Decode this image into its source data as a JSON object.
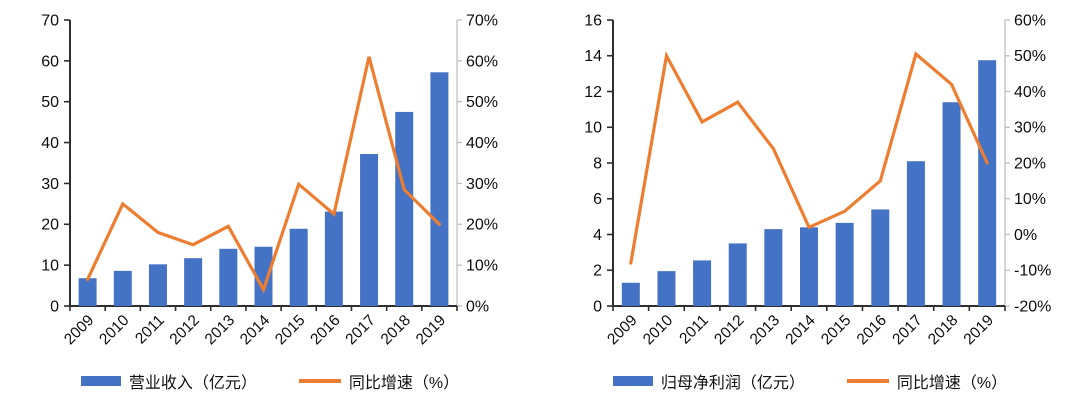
{
  "colors": {
    "bar": "#4472C4",
    "line": "#ED7D31",
    "axis_dark": "#2e2e2e",
    "axis_light": "#BFBFBF",
    "text": "#0d0d0d",
    "background": "#ffffff"
  },
  "chart_data": [
    {
      "type": "bar",
      "subtype": "bar-line-combo",
      "title": "",
      "categories": [
        "2009",
        "2010",
        "2011",
        "2012",
        "2013",
        "2014",
        "2015",
        "2016",
        "2017",
        "2018",
        "2019"
      ],
      "series": [
        {
          "name": "营业收入（亿元）",
          "type": "bar",
          "axis": "left",
          "values": [
            6.8,
            8.6,
            10.2,
            11.7,
            14.0,
            14.5,
            18.9,
            23.1,
            37.2,
            47.5,
            57.2
          ]
        },
        {
          "name": "同比增速（%）",
          "type": "line",
          "axis": "right",
          "values": [
            6.5,
            25,
            18,
            15,
            19.5,
            4,
            29.8,
            22.5,
            61,
            28.5,
            20
          ]
        }
      ],
      "left_axis": {
        "min": 0,
        "max": 70,
        "step": 10,
        "tick_labels": [
          "0",
          "10",
          "20",
          "30",
          "40",
          "50",
          "60",
          "70"
        ]
      },
      "right_axis": {
        "min": 0,
        "max": 70,
        "step": 10,
        "tick_labels": [
          "0%",
          "10%",
          "20%",
          "30%",
          "40%",
          "50%",
          "60%",
          "70%"
        ]
      },
      "grid": false,
      "legend_position": "bottom"
    },
    {
      "type": "bar",
      "subtype": "bar-line-combo",
      "title": "",
      "categories": [
        "2009",
        "2010",
        "2011",
        "2012",
        "2013",
        "2014",
        "2015",
        "2016",
        "2017",
        "2018",
        "2019"
      ],
      "series": [
        {
          "name": "归母净利润（亿元）",
          "type": "bar",
          "axis": "left",
          "values": [
            1.3,
            1.95,
            2.55,
            3.5,
            4.3,
            4.4,
            4.65,
            5.4,
            8.1,
            11.4,
            13.75
          ]
        },
        {
          "name": "同比增速（%）",
          "type": "line",
          "axis": "right",
          "values": [
            -8,
            50,
            31.5,
            37,
            24,
            2,
            6.5,
            15,
            50.5,
            42,
            20
          ]
        }
      ],
      "left_axis": {
        "min": 0,
        "max": 16,
        "step": 2,
        "tick_labels": [
          "0",
          "2",
          "4",
          "6",
          "8",
          "10",
          "12",
          "14",
          "16"
        ]
      },
      "right_axis": {
        "min": -20,
        "max": 60,
        "step": 10,
        "tick_labels": [
          "-20%",
          "-10%",
          "0%",
          "10%",
          "20%",
          "30%",
          "40%",
          "50%",
          "60%"
        ]
      },
      "grid": false,
      "legend_position": "bottom"
    }
  ]
}
